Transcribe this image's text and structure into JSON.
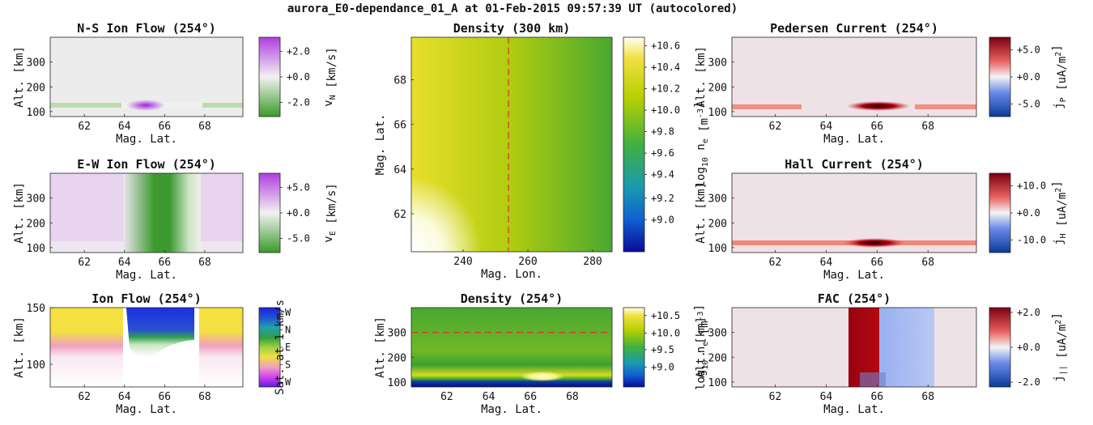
{
  "figure_title": "aurora_E0-dependance_01_A at 01-Feb-2015 09:57:39 UT (autocolored)",
  "chart_data": [
    {
      "id": "ns",
      "type": "heatmap",
      "title": "N-S Ion Flow (254°)",
      "xlabel": "Mag. Lat.",
      "ylabel": "Alt. [km]",
      "xlim": [
        60.3,
        69.9
      ],
      "ylim": [
        80,
        400
      ],
      "xticks": [
        "62",
        "64",
        "66",
        "68"
      ],
      "yticks": [
        "100",
        "200",
        "300"
      ],
      "colorbar": {
        "label": "v_N [km/s]",
        "ticks": [
          "+2.0",
          "+0.0",
          "-2.0"
        ],
        "colormap": "green-white-purple"
      }
    },
    {
      "id": "ew",
      "type": "heatmap",
      "title": "E-W Ion Flow (254°)",
      "xlabel": "Mag. Lat.",
      "ylabel": "Alt. [km]",
      "xlim": [
        60.3,
        69.9
      ],
      "ylim": [
        80,
        400
      ],
      "xticks": [
        "62",
        "64",
        "66",
        "68"
      ],
      "yticks": [
        "100",
        "200",
        "300"
      ],
      "colorbar": {
        "label": "v_E [km/s]",
        "ticks": [
          "+5.0",
          "+0.0",
          "-5.0"
        ],
        "colormap": "green-white-purple"
      }
    },
    {
      "id": "flow",
      "type": "heatmap",
      "title": "Ion Flow (254°)",
      "xlabel": "Mag. Lat.",
      "ylabel": "Alt. [km]",
      "xlim": [
        60.3,
        69.9
      ],
      "ylim": [
        80,
        150
      ],
      "xticks": [
        "62",
        "64",
        "66",
        "68"
      ],
      "yticks": [
        "100",
        "150"
      ],
      "colorbar": {
        "label": "Sat. at 1 km/s",
        "ticks": [
          "W",
          "N",
          "E",
          "S",
          "W"
        ],
        "colormap": "direction-cyclic"
      }
    },
    {
      "id": "dmap",
      "type": "heatmap",
      "title": "Density (300 km)",
      "xlabel": "Mag. Lon.",
      "ylabel": "Mag. Lat.",
      "xlim": [
        224,
        286
      ],
      "ylim": [
        60.3,
        69.9
      ],
      "xticks": [
        "240",
        "260",
        "280"
      ],
      "yticks": [
        "62",
        "64",
        "66",
        "68"
      ],
      "marker_line": {
        "axis": "x",
        "value": 254
      },
      "colorbar": {
        "label": "log10 n_e [m^-3]",
        "ticks": [
          "+10.6",
          "+10.4",
          "+10.2",
          "+10.0",
          "+9.8",
          "+9.6",
          "+9.4",
          "+9.2",
          "+9.0"
        ],
        "colormap": "parula"
      }
    },
    {
      "id": "dalt",
      "type": "heatmap",
      "title": "Density (254°)",
      "xlabel": "Mag. Lat.",
      "ylabel": "Alt. [km]",
      "xlim": [
        60.3,
        69.9
      ],
      "ylim": [
        80,
        400
      ],
      "xticks": [
        "62",
        "64",
        "66",
        "68"
      ],
      "yticks": [
        "100",
        "200",
        "300"
      ],
      "marker_line": {
        "axis": "y",
        "value": 300
      },
      "colorbar": {
        "label": "log10 n_e [m^-3]",
        "ticks": [
          "+10.5",
          "+10.0",
          "+9.5",
          "+9.0"
        ],
        "colormap": "parula"
      }
    },
    {
      "id": "ped",
      "type": "heatmap",
      "title": "Pedersen Current (254°)",
      "xlabel": "Mag. Lat.",
      "ylabel": "Alt. [km]",
      "xlim": [
        60.3,
        69.9
      ],
      "ylim": [
        80,
        400
      ],
      "xticks": [
        "62",
        "64",
        "66",
        "68"
      ],
      "yticks": [
        "100",
        "200",
        "300"
      ],
      "colorbar": {
        "label": "j_P [uA/m^2]",
        "ticks": [
          "+5.0",
          "+0.0",
          "-5.0"
        ],
        "colormap": "blue-white-red"
      }
    },
    {
      "id": "hall",
      "type": "heatmap",
      "title": "Hall Current (254°)",
      "xlabel": "Mag. Lat.",
      "ylabel": "Alt. [km]",
      "xlim": [
        60.3,
        69.9
      ],
      "ylim": [
        80,
        400
      ],
      "xticks": [
        "62",
        "64",
        "66",
        "68"
      ],
      "yticks": [
        "100",
        "200",
        "300"
      ],
      "colorbar": {
        "label": "j_H [uA/m^2]",
        "ticks": [
          "+10.0",
          "+0.0",
          "-10.0"
        ],
        "colormap": "blue-white-red"
      }
    },
    {
      "id": "fac",
      "type": "heatmap",
      "title": "FAC (254°)",
      "xlabel": "Mag. Lat.",
      "ylabel": "Alt. [km]",
      "xlim": [
        60.3,
        69.9
      ],
      "ylim": [
        80,
        400
      ],
      "xticks": [
        "62",
        "64",
        "66",
        "68"
      ],
      "yticks": [
        "100",
        "200",
        "300"
      ],
      "colorbar": {
        "label": "j_|| [uA/m^2]",
        "ticks": [
          "+2.0",
          "+0.0",
          "-2.0"
        ],
        "colormap": "blue-white-red"
      }
    }
  ]
}
